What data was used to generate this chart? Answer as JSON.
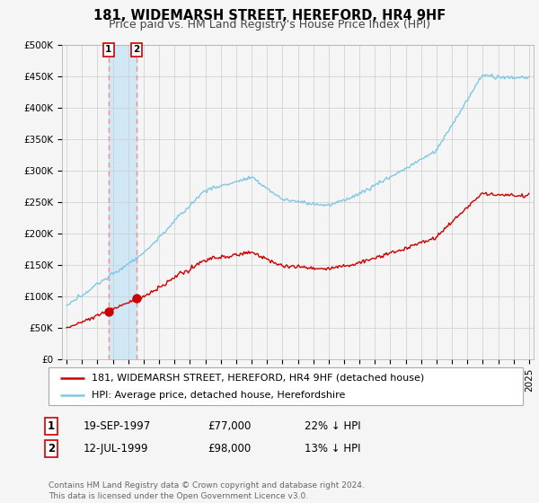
{
  "title": "181, WIDEMARSH STREET, HEREFORD, HR4 9HF",
  "subtitle": "Price paid vs. HM Land Registry's House Price Index (HPI)",
  "ylim": [
    0,
    500000
  ],
  "yticks": [
    0,
    50000,
    100000,
    150000,
    200000,
    250000,
    300000,
    350000,
    400000,
    450000,
    500000
  ],
  "ytick_labels": [
    "£0",
    "£50K",
    "£100K",
    "£150K",
    "£200K",
    "£250K",
    "£300K",
    "£350K",
    "£400K",
    "£450K",
    "£500K"
  ],
  "xlim": [
    1994.7,
    2025.3
  ],
  "hpi_color": "#7ec8e3",
  "price_color": "#cc0000",
  "shade_color": "#d0e8f5",
  "vline_color": "#ff8888",
  "bg_color": "#f5f5f5",
  "grid_color": "#cccccc",
  "sale1_year": 1997.72,
  "sale1_price": 77000,
  "sale2_year": 1999.54,
  "sale2_price": 98000,
  "legend_entry1": "181, WIDEMARSH STREET, HEREFORD, HR4 9HF (detached house)",
  "legend_entry2": "HPI: Average price, detached house, Herefordshire",
  "table_row1": [
    "1",
    "19-SEP-1997",
    "£77,000",
    "22% ↓ HPI"
  ],
  "table_row2": [
    "2",
    "12-JUL-1999",
    "£98,000",
    "13% ↓ HPI"
  ],
  "footnote": "Contains HM Land Registry data © Crown copyright and database right 2024.\nThis data is licensed under the Open Government Licence v3.0.",
  "title_fontsize": 10.5,
  "subtitle_fontsize": 9,
  "tick_fontsize": 7.5,
  "legend_fontsize": 8,
  "table_fontsize": 8.5,
  "footnote_fontsize": 6.5
}
